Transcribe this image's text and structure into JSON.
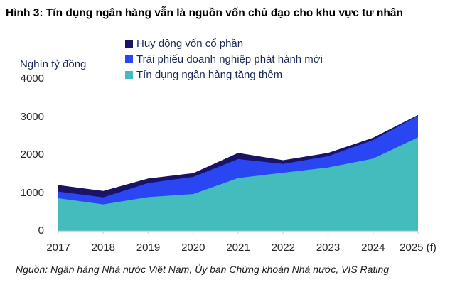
{
  "title": "Hình 3: Tín dụng ngân hàng vẫn là nguồn vốn chủ đạo cho khu vực tư nhân",
  "y_axis": {
    "unit": "Nghìn tỷ đồng",
    "ticks": [
      0,
      1000,
      2000,
      3000,
      4000
    ]
  },
  "legend": {
    "items": [
      {
        "label": "Huy động vốn cổ phần",
        "color": "#1b1464"
      },
      {
        "label": "Trái phiếu doanh nghiệp phát hành mới",
        "color": "#2946f2"
      },
      {
        "label": "Tín dụng ngân hàng tăng thêm",
        "color": "#44bcbe"
      }
    ]
  },
  "source": "Nguồn: Ngân hàng Nhà nước Việt Nam, Ủy ban Chứng khoán Nhà nước, VIS Rating",
  "colors": {
    "equity_navy": "#1b1464",
    "bond_blue": "#2946f2",
    "credit_teal": "#44bcbe",
    "axis_gray": "#d6d6d6"
  },
  "chart_data": {
    "type": "area",
    "stacked": true,
    "title": "Hình 3: Tín dụng ngân hàng vẫn là nguồn vốn chủ đạo cho khu vực tư nhân",
    "ylabel": "Nghìn tỷ đồng",
    "ylim": [
      0,
      4000
    ],
    "grid": false,
    "legend_position": "top",
    "categories": [
      "2017",
      "2018",
      "2019",
      "2020",
      "2021",
      "2022",
      "2023",
      "2024",
      "2025 (f)"
    ],
    "series": [
      {
        "name": "Tín dụng ngân hàng tăng thêm",
        "color": "#44bcbe",
        "values": [
          860,
          700,
          890,
          970,
          1390,
          1530,
          1670,
          1900,
          2460
        ]
      },
      {
        "name": "Trái phiếu doanh nghiệp phát hành mới",
        "color": "#2946f2",
        "values": [
          175,
          185,
          370,
          450,
          500,
          230,
          295,
          490,
          570
        ]
      },
      {
        "name": "Huy động vốn cổ phần",
        "color": "#1b1464",
        "values": [
          170,
          165,
          120,
          100,
          160,
          100,
          85,
          60,
          20
        ]
      }
    ],
    "totals": [
      1205,
      1050,
      1380,
      1520,
      2050,
      1860,
      2050,
      2450,
      3050
    ]
  }
}
